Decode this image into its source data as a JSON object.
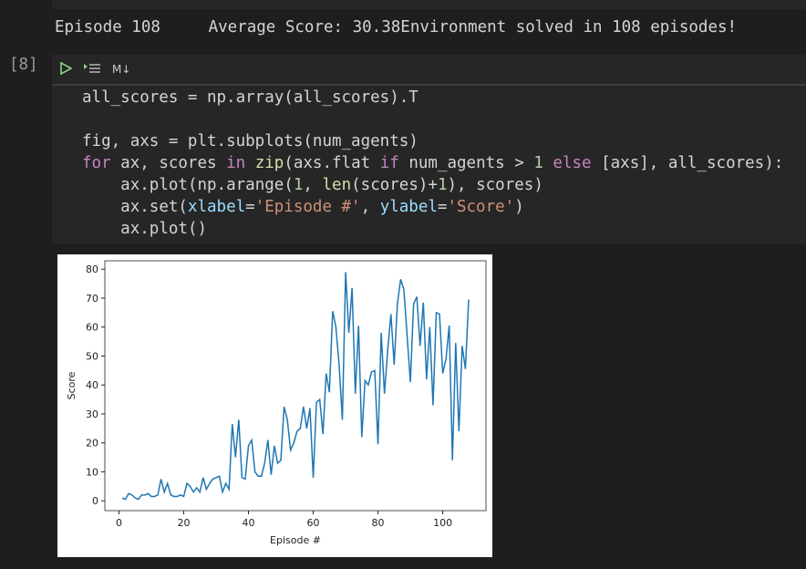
{
  "output": {
    "text": "Episode 108     Average Score: 30.38Environment solved in 108 episodes!"
  },
  "cell": {
    "execution_count": "[8]",
    "toolbar_label": "M↓",
    "code": [
      [
        "all_scores = np.array(all_scores).T"
      ],
      [
        "fig, axs = plt.subplots(num_agents)",
        "for ax, scores in zip(axs.flat if num_agents > 1 else [axs], all_scores):",
        "    ax.plot(np.arange(1, len(scores)+1), scores)",
        "    ax.set(xlabel='Episode #', ylabel='Score')",
        "    ax.plot()"
      ]
    ]
  },
  "chart_data": {
    "type": "line",
    "xlabel": "Episode #",
    "ylabel": "Score",
    "x": [
      1,
      2,
      3,
      4,
      5,
      6,
      7,
      8,
      9,
      10,
      11,
      12,
      13,
      14,
      15,
      16,
      17,
      18,
      19,
      20,
      21,
      22,
      23,
      24,
      25,
      26,
      27,
      28,
      29,
      30,
      31,
      32,
      33,
      34,
      35,
      36,
      37,
      38,
      39,
      40,
      41,
      42,
      43,
      44,
      45,
      46,
      47,
      48,
      49,
      50,
      51,
      52,
      53,
      54,
      55,
      56,
      57,
      58,
      59,
      60,
      61,
      62,
      63,
      64,
      65,
      66,
      67,
      68,
      69,
      70,
      71,
      72,
      73,
      74,
      75,
      76,
      77,
      78,
      79,
      80,
      81,
      82,
      83,
      84,
      85,
      86,
      87,
      88,
      89,
      90,
      91,
      92,
      93,
      94,
      95,
      96,
      97,
      98,
      99,
      100,
      101,
      102,
      103,
      104,
      105,
      106,
      107,
      108
    ],
    "series": [
      {
        "color": "#1f77b4",
        "values": [
          1,
          0.5,
          2.5,
          2,
          1,
          0.5,
          2,
          2,
          2.5,
          1.5,
          1.5,
          2,
          7.5,
          3,
          6,
          2,
          1.5,
          1.5,
          2,
          1.5,
          6,
          5,
          3,
          4.5,
          3,
          8,
          4,
          6,
          7.5,
          8,
          8.5,
          3,
          6,
          4,
          26.5,
          15,
          28,
          8,
          7.5,
          19,
          21,
          10,
          8.5,
          8.5,
          13,
          21,
          9,
          19,
          13,
          14,
          32.5,
          28,
          17.5,
          20,
          24,
          25,
          32.5,
          25,
          32,
          8,
          34,
          35,
          23,
          44,
          37.5,
          65.5,
          60,
          47,
          28,
          79,
          58,
          73.5,
          37,
          60.5,
          22,
          41.5,
          40,
          44.5,
          45,
          19.5,
          58,
          37,
          52,
          64.5,
          47,
          68,
          76.5,
          73,
          57,
          41,
          68,
          70.5,
          53.5,
          68.5,
          42,
          60,
          33,
          65,
          64.5,
          44,
          49,
          60.5,
          14,
          54.5,
          24,
          53.5,
          45.5,
          69.5
        ]
      }
    ],
    "xlim": [
      -4.35,
      113.35
    ],
    "ylim": [
      -3.4,
      82.9
    ],
    "xticks": [
      0,
      20,
      40,
      60,
      80,
      100
    ],
    "yticks": [
      0,
      10,
      20,
      30,
      40,
      50,
      60,
      70,
      80
    ]
  }
}
